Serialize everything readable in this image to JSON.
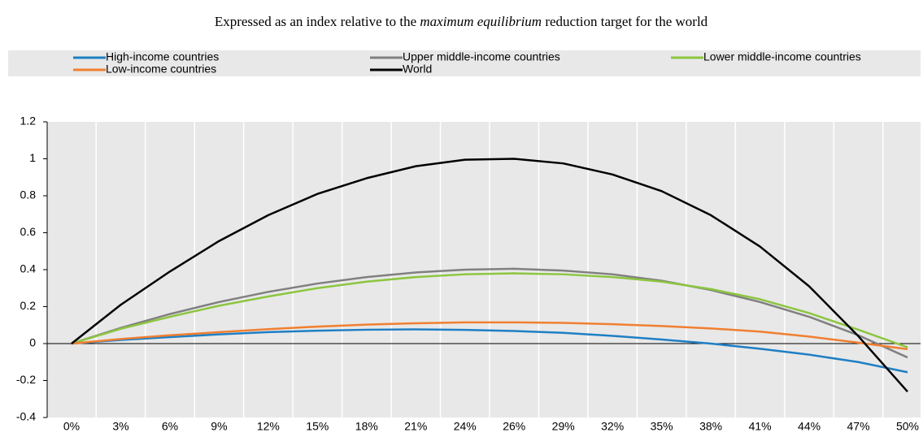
{
  "chart_data": {
    "type": "line",
    "title": [
      "Expressed as an index relative to the ",
      "maximum equilibrium",
      " reduction target for the world"
    ],
    "categories": [
      "0%",
      "3%",
      "6%",
      "9%",
      "12%",
      "15%",
      "18%",
      "21%",
      "24%",
      "26%",
      "29%",
      "32%",
      "35%",
      "38%",
      "41%",
      "44%",
      "47%",
      "50%"
    ],
    "series": [
      {
        "name": "High-income countries",
        "color": "#1f7fc4",
        "values": [
          0,
          0.02,
          0.035,
          0.05,
          0.062,
          0.07,
          0.075,
          0.077,
          0.074,
          0.068,
          0.058,
          0.042,
          0.022,
          0.0,
          -0.028,
          -0.06,
          -0.1,
          -0.155
        ]
      },
      {
        "name": "Upper middle-income countries",
        "color": "#808080",
        "values": [
          0,
          0.085,
          0.16,
          0.225,
          0.28,
          0.325,
          0.36,
          0.385,
          0.4,
          0.405,
          0.395,
          0.375,
          0.34,
          0.29,
          0.225,
          0.145,
          0.045,
          -0.075
        ]
      },
      {
        "name": "Lower middle-income countries",
        "color": "#8cc63f",
        "values": [
          0,
          0.08,
          0.145,
          0.205,
          0.255,
          0.3,
          0.335,
          0.36,
          0.375,
          0.38,
          0.375,
          0.36,
          0.335,
          0.295,
          0.24,
          0.165,
          0.075,
          -0.02
        ]
      },
      {
        "name": "Low-income countries",
        "color": "#f07f31",
        "values": [
          0,
          0.025,
          0.045,
          0.062,
          0.078,
          0.092,
          0.103,
          0.11,
          0.115,
          0.115,
          0.112,
          0.105,
          0.095,
          0.082,
          0.065,
          0.038,
          0.005,
          -0.03
        ]
      },
      {
        "name": "World",
        "color": "#000000",
        "values": [
          0,
          0.21,
          0.39,
          0.555,
          0.695,
          0.81,
          0.895,
          0.96,
          0.995,
          1.0,
          0.975,
          0.915,
          0.825,
          0.695,
          0.525,
          0.31,
          0.04,
          -0.26
        ]
      }
    ],
    "ylim": [
      -0.4,
      1.2
    ],
    "yticks": [
      -0.4,
      -0.2,
      0,
      0.2,
      0.4,
      0.6,
      0.8,
      1,
      1.2
    ]
  }
}
